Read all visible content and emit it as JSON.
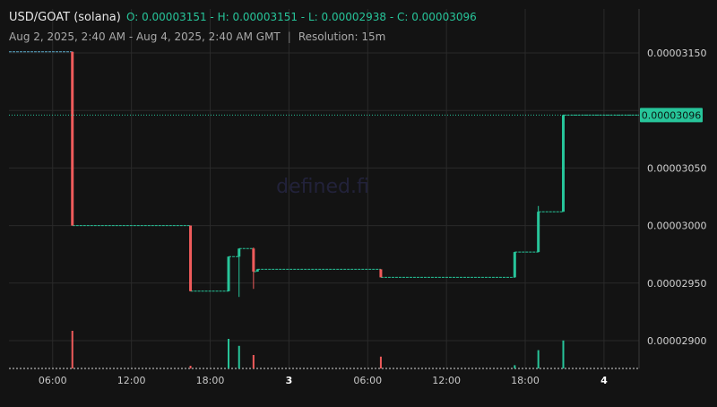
{
  "header": {
    "pair": "USD/GOAT (solana)",
    "ohlc": "O: 0.00003151 - H: 0.00003151 - L: 0.00002938 - C: 0.00003096",
    "range": "Aug 2, 2025, 2:40 AM - Aug 4, 2025, 2:40 AM GMT",
    "separator": "|",
    "resolution": "Resolution: 15m"
  },
  "watermark": "defined.fi",
  "price_tag": "0.00003096",
  "colors": {
    "up": "#27c59a",
    "down": "#ef5b5b",
    "background": "#131313",
    "grid": "#2a2a2a"
  },
  "chart_data": {
    "type": "candlestick",
    "x_ticks": [
      {
        "label": "06:00",
        "hour": 6,
        "bold": false
      },
      {
        "label": "12:00",
        "hour": 12,
        "bold": false
      },
      {
        "label": "18:00",
        "hour": 18,
        "bold": false
      },
      {
        "label": "3",
        "hour": 24,
        "bold": true
      },
      {
        "label": "06:00",
        "hour": 30,
        "bold": false
      },
      {
        "label": "12:00",
        "hour": 36,
        "bold": false
      },
      {
        "label": "18:00",
        "hour": 42,
        "bold": false
      },
      {
        "label": "4",
        "hour": 48,
        "bold": true
      }
    ],
    "y_ticks": [
      2.9e-05,
      2.95e-05,
      3e-05,
      3.05e-05,
      3.15e-05
    ],
    "y_tick_labels": [
      "0.00002900",
      "0.00002950",
      "0.00003000",
      "0.00003050",
      "0.00003150"
    ],
    "ylim": [
      2.875e-05,
      3.17e-05
    ],
    "xlim_hours": [
      2.67,
      50.67
    ],
    "current_price": 3.096e-05,
    "price_segments": [
      {
        "from": 2.67,
        "to": 7.5,
        "price": 3.151e-05
      },
      {
        "from": 7.5,
        "to": 16.5,
        "price": 3e-05
      },
      {
        "from": 16.5,
        "to": 19.4,
        "price": 2.943e-05
      },
      {
        "from": 19.4,
        "to": 20.2,
        "price": 2.973e-05
      },
      {
        "from": 20.2,
        "to": 21.3,
        "price": 2.98e-05
      },
      {
        "from": 21.3,
        "to": 21.6,
        "price": 2.96e-05
      },
      {
        "from": 21.6,
        "to": 31.0,
        "price": 2.962e-05
      },
      {
        "from": 31.0,
        "to": 41.2,
        "price": 2.955e-05
      },
      {
        "from": 41.2,
        "to": 43.0,
        "price": 2.977e-05
      },
      {
        "from": 43.0,
        "to": 44.9,
        "price": 3.012e-05
      },
      {
        "from": 44.9,
        "to": 50.67,
        "price": 3.096e-05
      }
    ],
    "candles": [
      {
        "t": 7.5,
        "o": 3.151e-05,
        "h": 3.151e-05,
        "l": 3e-05,
        "c": 3e-05
      },
      {
        "t": 16.5,
        "o": 3e-05,
        "h": 3e-05,
        "l": 2.943e-05,
        "c": 2.943e-05
      },
      {
        "t": 19.4,
        "o": 2.943e-05,
        "h": 2.973e-05,
        "l": 2.943e-05,
        "c": 2.973e-05
      },
      {
        "t": 20.2,
        "o": 2.973e-05,
        "h": 2.98e-05,
        "l": 2.938e-05,
        "c": 2.98e-05
      },
      {
        "t": 21.3,
        "o": 2.98e-05,
        "h": 2.981e-05,
        "l": 2.945e-05,
        "c": 2.96e-05
      },
      {
        "t": 21.6,
        "o": 2.96e-05,
        "h": 2.962e-05,
        "l": 2.96e-05,
        "c": 2.962e-05
      },
      {
        "t": 31.0,
        "o": 2.962e-05,
        "h": 2.962e-05,
        "l": 2.955e-05,
        "c": 2.955e-05
      },
      {
        "t": 41.2,
        "o": 2.955e-05,
        "h": 2.977e-05,
        "l": 2.955e-05,
        "c": 2.977e-05
      },
      {
        "t": 43.0,
        "o": 2.977e-05,
        "h": 3.017e-05,
        "l": 2.977e-05,
        "c": 3.012e-05
      },
      {
        "t": 44.9,
        "o": 3.012e-05,
        "h": 3.096e-05,
        "l": 3.012e-05,
        "c": 3.096e-05
      }
    ],
    "volumes": [
      {
        "t": 7.5,
        "v": 0.7,
        "dir": "down"
      },
      {
        "t": 16.5,
        "v": 0.05,
        "dir": "down"
      },
      {
        "t": 19.4,
        "v": 0.55,
        "dir": "up"
      },
      {
        "t": 20.2,
        "v": 0.42,
        "dir": "up"
      },
      {
        "t": 21.3,
        "v": 0.25,
        "dir": "down"
      },
      {
        "t": 31.0,
        "v": 0.22,
        "dir": "down"
      },
      {
        "t": 41.2,
        "v": 0.06,
        "dir": "up"
      },
      {
        "t": 43.0,
        "v": 0.34,
        "dir": "up"
      },
      {
        "t": 44.9,
        "v": 0.52,
        "dir": "up"
      }
    ]
  }
}
